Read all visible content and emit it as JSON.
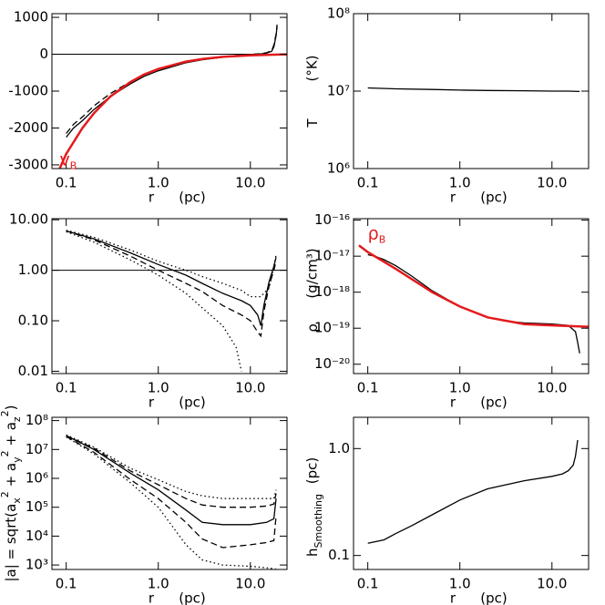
{
  "chart_data": [
    {
      "type": "line",
      "xscale": "log",
      "yscale": "linear",
      "xlim": [
        0.07,
        25
      ],
      "ylim": [
        -3100,
        1100
      ],
      "xticks": [
        {
          "value": 0.1,
          "label": "0.1"
        },
        {
          "value": 1,
          "label": "1.0"
        },
        {
          "value": 10,
          "label": "10.0"
        }
      ],
      "yticks": [
        1000,
        0,
        -1000,
        -2000,
        -3000
      ],
      "xlabel": "r",
      "xunit": "(pc)",
      "hline": 0,
      "annotation": {
        "segments": [
          {
            "t": "v"
          },
          {
            "t": "B",
            "s": "sub"
          }
        ],
        "color": "#e41a1c"
      },
      "series": [
        {
          "color": "#000000",
          "dash": "solid",
          "x": [
            0.1,
            0.12,
            0.15,
            0.2,
            0.3,
            0.5,
            0.7,
            1,
            1.5,
            2,
            3,
            5,
            7,
            10,
            13,
            15,
            17,
            18,
            19,
            19.5
          ],
          "values": [
            -2250,
            -2000,
            -1800,
            -1500,
            -1150,
            -800,
            -600,
            -450,
            -320,
            -230,
            -150,
            -80,
            -40,
            -10,
            10,
            30,
            80,
            200,
            500,
            750
          ]
        },
        {
          "color": "#000000",
          "dash": "dashed",
          "x": [
            0.1,
            0.12,
            0.15,
            0.2,
            0.3,
            0.5,
            0.7,
            1,
            1.5,
            2,
            3,
            5,
            7,
            10,
            13,
            15,
            17,
            18,
            19,
            19.5
          ],
          "values": [
            -2150,
            -1900,
            -1700,
            -1400,
            -1070,
            -740,
            -550,
            -410,
            -290,
            -200,
            -130,
            -70,
            -35,
            -5,
            15,
            40,
            100,
            250,
            550,
            800
          ]
        },
        {
          "color": "#e41a1c",
          "dash": "solid",
          "width": 2.5,
          "x": [
            0.085,
            0.1,
            0.15,
            0.2,
            0.3,
            0.5,
            0.7,
            1,
            2,
            3,
            5,
            10,
            20,
            25
          ],
          "values": [
            -3100,
            -2700,
            -2000,
            -1600,
            -1150,
            -750,
            -550,
            -400,
            -200,
            -130,
            -70,
            -30,
            -10,
            -5
          ]
        }
      ]
    },
    {
      "type": "line",
      "xscale": "log",
      "yscale": "log",
      "xlim": [
        0.07,
        25
      ],
      "ylim": [
        1000000,
        100000000
      ],
      "xticks": [
        {
          "value": 0.1,
          "label": "0.1"
        },
        {
          "value": 1,
          "label": "1.0"
        },
        {
          "value": 10,
          "label": "10.0"
        }
      ],
      "yticks": [
        {
          "value": 100000000,
          "label": "10⁸"
        },
        {
          "value": 10000000,
          "label": "10⁷"
        },
        {
          "value": 1000000,
          "label": "10⁶"
        }
      ],
      "xlabel": "r",
      "xunit": "(pc)",
      "ylabel": [
        {
          "t": "T"
        }
      ],
      "yunit": "(°K)",
      "series": [
        {
          "color": "#000000",
          "dash": "solid",
          "x": [
            0.1,
            0.2,
            0.5,
            1,
            2,
            5,
            10,
            15,
            20
          ],
          "values": [
            11000000,
            10700000,
            10500000,
            10300000,
            10200000,
            10100000,
            10000000,
            10000000,
            9900000
          ]
        }
      ]
    },
    {
      "type": "line",
      "xscale": "log",
      "yscale": "log",
      "xlim": [
        0.07,
        25
      ],
      "ylim": [
        0.009,
        10.5
      ],
      "xticks": [
        {
          "value": 0.1,
          "label": "0.1"
        },
        {
          "value": 1,
          "label": "1.0"
        },
        {
          "value": 10,
          "label": "10.0"
        }
      ],
      "yticks": [
        {
          "value": 10,
          "label": "10.00"
        },
        {
          "value": 1,
          "label": "1.00"
        },
        {
          "value": 0.1,
          "label": "0.10"
        },
        {
          "value": 0.01,
          "label": "0.01"
        }
      ],
      "xlabel": "r",
      "xunit": "(pc)",
      "hline": 1,
      "series": [
        {
          "color": "#000000",
          "dash": "solid",
          "x": [
            0.1,
            0.2,
            0.5,
            1,
            2,
            3,
            5,
            8,
            10,
            12,
            13,
            14,
            16,
            18,
            19
          ],
          "values": [
            6,
            4.2,
            2.2,
            1.3,
            0.8,
            0.55,
            0.35,
            0.25,
            0.2,
            0.13,
            0.08,
            0.2,
            0.6,
            1.2,
            1.8
          ]
        },
        {
          "color": "#000000",
          "dash": "dashed",
          "x": [
            0.1,
            0.2,
            0.5,
            1,
            2,
            3,
            5,
            8,
            10,
            12,
            13,
            14,
            16,
            18,
            19
          ],
          "values": [
            6,
            4,
            1.9,
            1,
            0.55,
            0.38,
            0.2,
            0.13,
            0.1,
            0.06,
            0.05,
            0.15,
            0.5,
            1,
            1.5
          ]
        },
        {
          "color": "#000000",
          "dash": "dotted",
          "x": [
            0.1,
            0.2,
            0.5,
            1,
            2,
            3,
            5,
            8,
            10,
            12,
            13,
            14,
            16,
            18,
            19
          ],
          "values": [
            6.2,
            4.5,
            2.5,
            1.5,
            1,
            0.75,
            0.55,
            0.4,
            0.3,
            0.3,
            0.3,
            0.35,
            0.45,
            1.2,
            2
          ]
        },
        {
          "color": "#000000",
          "dash": "dotted",
          "x": [
            0.1,
            0.2,
            0.5,
            1,
            2,
            3,
            5,
            7,
            8
          ],
          "values": [
            5.8,
            3.6,
            1.6,
            0.8,
            0.35,
            0.18,
            0.08,
            0.03,
            0.01
          ]
        }
      ]
    },
    {
      "type": "line",
      "xscale": "log",
      "yscale": "log",
      "xlim": [
        0.07,
        25
      ],
      "ylim": [
        5.5e-21,
        1.1e-16
      ],
      "xticks": [
        {
          "value": 0.1,
          "label": "0.1"
        },
        {
          "value": 1,
          "label": "1.0"
        },
        {
          "value": 10,
          "label": "10.0"
        }
      ],
      "yticks": [
        {
          "value": 1e-16,
          "label": "10⁻¹⁶"
        },
        {
          "value": 1e-17,
          "label": "10⁻¹⁷"
        },
        {
          "value": 1e-18,
          "label": "10⁻¹⁸"
        },
        {
          "value": 1e-19,
          "label": "10⁻¹⁹"
        },
        {
          "value": 1e-20,
          "label": "10⁻²⁰"
        }
      ],
      "xlabel": "r",
      "xunit": "(pc)",
      "ylabel": [
        {
          "t": "ρ"
        }
      ],
      "yunit": "(g/cm³)",
      "annotation": {
        "segments": [
          {
            "t": "ρ"
          },
          {
            "t": "B",
            "s": "sub"
          }
        ],
        "color": "#e41a1c"
      },
      "series": [
        {
          "color": "#000000",
          "dash": "solid",
          "x": [
            0.1,
            0.12,
            0.15,
            0.2,
            0.3,
            0.5,
            1,
            2,
            3,
            5,
            10,
            15,
            18,
            19,
            20
          ],
          "values": [
            1.1e-17,
            1e-17,
            8e-18,
            5.5e-18,
            2.8e-18,
            1.1e-18,
            4e-19,
            2e-19,
            1.6e-19,
            1.4e-19,
            1.3e-19,
            1.2e-19,
            8e-20,
            4e-20,
            2e-20
          ]
        },
        {
          "color": "#e41a1c",
          "dash": "solid",
          "width": 2.5,
          "x": [
            0.08,
            0.1,
            0.2,
            0.5,
            1,
            2,
            5,
            10,
            25
          ],
          "values": [
            2e-17,
            1.3e-17,
            4.5e-18,
            1e-18,
            4e-19,
            2e-19,
            1.3e-19,
            1.2e-19,
            1.1e-19
          ]
        }
      ]
    },
    {
      "type": "line",
      "xscale": "log",
      "yscale": "log",
      "xlim": [
        0.07,
        25
      ],
      "ylim": [
        700,
        130000000
      ],
      "xticks": [
        {
          "value": 0.1,
          "label": "0.1"
        },
        {
          "value": 1,
          "label": "1.0"
        },
        {
          "value": 10,
          "label": "10.0"
        }
      ],
      "yticks": [
        {
          "value": 100000000,
          "label": "10⁸"
        },
        {
          "value": 10000000,
          "label": "10⁷"
        },
        {
          "value": 1000000,
          "label": "10⁶"
        },
        {
          "value": 100000,
          "label": "10⁵"
        },
        {
          "value": 10000,
          "label": "10⁴"
        },
        {
          "value": 1000,
          "label": "10³"
        }
      ],
      "xlabel": "r",
      "xunit": "(pc)",
      "ylabel": [
        {
          "t": "|a| = sqrt(a"
        },
        {
          "t": "x",
          "s": "sub"
        },
        {
          "t": "2",
          "s": "sup"
        },
        {
          "t": " + a"
        },
        {
          "t": "y",
          "s": "sub"
        },
        {
          "t": "2",
          "s": "sup"
        },
        {
          "t": " + a"
        },
        {
          "t": "z",
          "s": "sub"
        },
        {
          "t": "2",
          "s": "sup"
        },
        {
          "t": ")"
        }
      ],
      "series": [
        {
          "color": "#000000",
          "dash": "solid",
          "x": [
            0.1,
            0.2,
            0.5,
            1,
            2,
            3,
            5,
            10,
            15,
            18,
            19
          ],
          "values": [
            30000000,
            10000000,
            1500000,
            400000,
            80000,
            30000,
            25000,
            25000,
            30000,
            40000,
            200000
          ]
        },
        {
          "color": "#000000",
          "dash": "dashed",
          "x": [
            0.1,
            0.2,
            0.5,
            1,
            2,
            3,
            5,
            10,
            15,
            18,
            19
          ],
          "values": [
            30000000,
            11000000,
            1800000,
            600000,
            200000,
            120000,
            100000,
            100000,
            110000,
            130000,
            300000
          ]
        },
        {
          "color": "#000000",
          "dash": "dotted",
          "x": [
            0.1,
            0.2,
            0.5,
            1,
            2,
            3,
            5,
            10,
            15,
            18,
            19
          ],
          "values": [
            32000000,
            12000000,
            2200000,
            900000,
            350000,
            250000,
            200000,
            200000,
            200000,
            200000,
            400000
          ]
        },
        {
          "color": "#000000",
          "dash": "dashed",
          "x": [
            0.1,
            0.2,
            0.5,
            1,
            2,
            3,
            5,
            10,
            15,
            18,
            19
          ],
          "values": [
            28000000,
            8000000,
            900000,
            200000,
            30000,
            8000,
            4000,
            5000,
            6000,
            7000,
            50000
          ]
        },
        {
          "color": "#000000",
          "dash": "dotted",
          "x": [
            0.1,
            0.2,
            0.5,
            1,
            2,
            3,
            5,
            10,
            15,
            18,
            19
          ],
          "values": [
            27000000,
            7000000,
            700000,
            100000,
            5000,
            1500,
            1000,
            900,
            800,
            750,
            700
          ]
        }
      ]
    },
    {
      "type": "line",
      "xscale": "log",
      "yscale": "log",
      "xlim": [
        0.07,
        25
      ],
      "ylim": [
        0.074,
        1.96
      ],
      "xticks": [
        {
          "value": 0.1,
          "label": "0.1"
        },
        {
          "value": 1,
          "label": "1.0"
        },
        {
          "value": 10,
          "label": "10.0"
        }
      ],
      "yticks": [
        {
          "value": 1,
          "label": "1.0"
        },
        0.1
      ],
      "xlabel": "r",
      "xunit": "(pc)",
      "ylabel": [
        {
          "t": "h"
        },
        {
          "t": "Smoothing",
          "s": "sub"
        }
      ],
      "yunit": "(pc)",
      "series": [
        {
          "color": "#000000",
          "dash": "solid",
          "x": [
            0.1,
            0.15,
            0.2,
            0.3,
            0.5,
            1,
            2,
            5,
            10,
            13,
            15,
            17,
            18,
            19
          ],
          "values": [
            0.13,
            0.14,
            0.16,
            0.19,
            0.24,
            0.33,
            0.42,
            0.5,
            0.55,
            0.58,
            0.62,
            0.7,
            0.85,
            1.2
          ]
        }
      ]
    }
  ]
}
